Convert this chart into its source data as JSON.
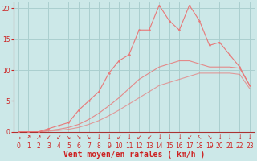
{
  "xlabel": "Vent moyen/en rafales ( km/h )",
  "xlim": [
    -0.5,
    23.5
  ],
  "ylim": [
    0,
    21
  ],
  "xticks": [
    0,
    1,
    2,
    3,
    4,
    5,
    6,
    7,
    8,
    9,
    10,
    11,
    12,
    13,
    14,
    15,
    16,
    17,
    18,
    19,
    20,
    21,
    22,
    23
  ],
  "yticks": [
    0,
    5,
    10,
    15,
    20
  ],
  "bg_color": "#cce8e8",
  "grid_color": "#aacfcf",
  "line_color": "#e87878",
  "line2_x": [
    0,
    1,
    2,
    3,
    4,
    5,
    6,
    7,
    8,
    9,
    10,
    11,
    12,
    13,
    14,
    15,
    16,
    17,
    18,
    19,
    20,
    21,
    22,
    23
  ],
  "line2_y": [
    0,
    0,
    0,
    0.5,
    1.0,
    1.5,
    3.5,
    5.0,
    6.5,
    9.5,
    11.5,
    12.5,
    16.5,
    16.5,
    20.5,
    18.0,
    16.5,
    20.5,
    18.0,
    14.0,
    14.5,
    12.5,
    10.5,
    7.5
  ],
  "line3_x": [
    0,
    1,
    2,
    3,
    4,
    5,
    6,
    7,
    8,
    9,
    10,
    11,
    12,
    13,
    14,
    15,
    16,
    17,
    18,
    19,
    20,
    21,
    22,
    23
  ],
  "line3_y": [
    0,
    0,
    0,
    0.2,
    0.4,
    0.7,
    1.2,
    2.0,
    3.0,
    4.2,
    5.5,
    7.0,
    8.5,
    9.5,
    10.5,
    11.0,
    11.5,
    11.5,
    11.0,
    10.5,
    10.5,
    10.5,
    10.3,
    7.5
  ],
  "line4_x": [
    0,
    1,
    2,
    3,
    4,
    5,
    6,
    7,
    8,
    9,
    10,
    11,
    12,
    13,
    14,
    15,
    16,
    17,
    18,
    19,
    20,
    21,
    22,
    23
  ],
  "line4_y": [
    0,
    0,
    0,
    0.1,
    0.2,
    0.4,
    0.7,
    1.2,
    1.8,
    2.6,
    3.5,
    4.5,
    5.5,
    6.5,
    7.5,
    8.0,
    8.5,
    9.0,
    9.5,
    9.5,
    9.5,
    9.5,
    9.3,
    7.0
  ],
  "arrow_symbols": [
    "→",
    "↗",
    "↗",
    "↙",
    "↙",
    "↘",
    "↘",
    "↘",
    "↓",
    "↓",
    "↙",
    "↓",
    "↙",
    "↙",
    "↓",
    "↓",
    "↓",
    "↙",
    "↖",
    "↘",
    "↓",
    "↓",
    "↓",
    "↓"
  ],
  "tick_fontsize": 5.5,
  "label_fontsize": 7
}
